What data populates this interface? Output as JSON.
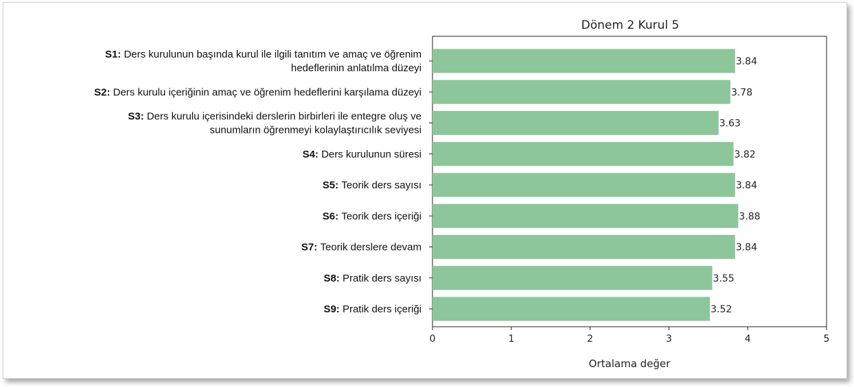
{
  "chart_data": {
    "type": "bar",
    "orientation": "horizontal",
    "title": "Dönem 2 Kurul 5",
    "xlabel": "Ortalama değer",
    "xlim": [
      0,
      5
    ],
    "xticks": [
      "0",
      "1",
      "2",
      "3",
      "4",
      "5"
    ],
    "bar_color": "#8dc69a",
    "categories": [
      {
        "code": "S1:",
        "lines": [
          "Ders kurulunun başında kurul ile ilgili tanıtım ve amaç ve öğrenim",
          "hedeflerinin anlatılma düzeyi"
        ]
      },
      {
        "code": "S2:",
        "lines": [
          "Ders kurulu içeriğinin amaç ve öğrenim hedeflerini karşılama düzeyi"
        ]
      },
      {
        "code": "S3:",
        "lines": [
          "Ders kurulu içerisindeki derslerin birbirleri ile entegre oluş ve",
          "sunumların öğrenmeyi kolaylaştırıcılık seviyesi"
        ]
      },
      {
        "code": "S4:",
        "lines": [
          "Ders kurulunun süresi"
        ]
      },
      {
        "code": "S5:",
        "lines": [
          "Teorik ders sayısı"
        ]
      },
      {
        "code": "S6:",
        "lines": [
          "Teorik ders içeriği"
        ]
      },
      {
        "code": "S7:",
        "lines": [
          "Teorik derslere devam"
        ]
      },
      {
        "code": "S8:",
        "lines": [
          "Pratik ders sayısı"
        ]
      },
      {
        "code": "S9:",
        "lines": [
          "Pratik ders içeriği"
        ]
      }
    ],
    "values": [
      3.84,
      3.78,
      3.63,
      3.82,
      3.84,
      3.88,
      3.84,
      3.55,
      3.52
    ],
    "value_labels": [
      "3.84",
      "3.78",
      "3.63",
      "3.82",
      "3.84",
      "3.88",
      "3.84",
      "3.55",
      "3.52"
    ]
  }
}
